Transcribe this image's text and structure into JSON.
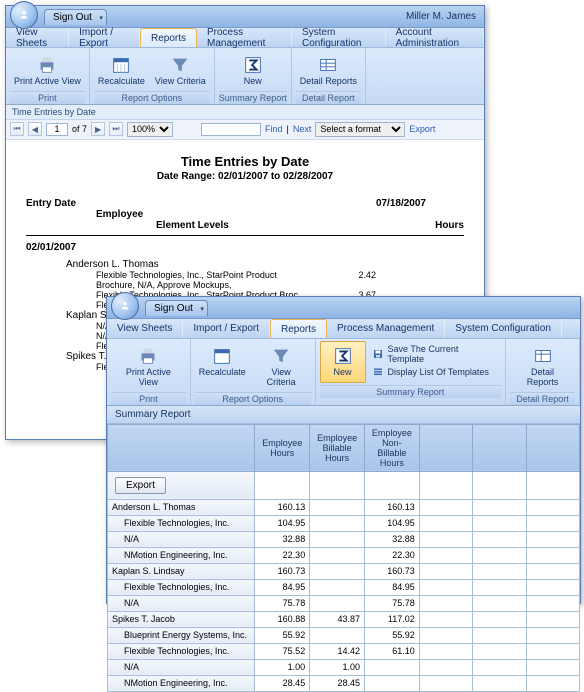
{
  "user": "Miller M. James",
  "signout": "Sign Out",
  "menus": [
    "View Sheets",
    "Import / Export",
    "Reports",
    "Process Management",
    "System Configuration",
    "Account Administration"
  ],
  "active_menu": 2,
  "ribbon": {
    "print": {
      "btn": "Print Active View",
      "group": "Print"
    },
    "reportopts": {
      "recalc": "Recalculate",
      "criteria": "View Criteria",
      "group": "Report Options"
    },
    "summary": {
      "new": "New",
      "group": "Summary Report"
    },
    "detail": {
      "btn": "Detail Reports",
      "group": "Detail Report"
    },
    "save_template": "Save The Current Template",
    "display_list": "Display List Of Templates"
  },
  "w1": {
    "crumb": "Time Entries by Date",
    "page_of": "of 7",
    "page": "1",
    "zoom": "100%",
    "find": "Find",
    "next": "Next",
    "format_placeholder": "Select a format",
    "export": "Export",
    "title": "Time Entries by Date",
    "range": "Date Range: 02/01/2007 to 02/28/2007",
    "entry_date_lbl": "Entry Date",
    "employee_lbl": "Employee",
    "elements_lbl": "Element Levels",
    "hours_lbl": "Hours",
    "asof": "07/18/2007",
    "group_date": "02/01/2007",
    "employees": [
      {
        "name": "Anderson L. Thomas",
        "tasks": [
          {
            "t": "Flexible Technologies, Inc., StarPoint Product Brochure, N/A, Approve Mockups,",
            "h": "2.42"
          },
          {
            "t": "Flexible Technologies, Inc., StarPoint Product Broc",
            "h": "3.67"
          },
          {
            "t": "Flexi\nCom",
            "h": ""
          }
        ]
      },
      {
        "name": "Kaplan S. Lindsay",
        "tasks": [
          {
            "t": "N/A,\nDesi",
            "h": ""
          },
          {
            "t": "N/A",
            "h": ""
          },
          {
            "t": "Flexi",
            "h": ""
          }
        ]
      },
      {
        "name": "Spikes T. Jacob",
        "tasks": [
          {
            "t": "Flexi",
            "h": ""
          }
        ]
      }
    ]
  },
  "w2": {
    "subtitle": "Summary Report",
    "export": "Export",
    "cols": [
      "",
      "Employee Hours",
      "Employee Billable Hours",
      "Employee Non-Billable Hours",
      "",
      "",
      ""
    ],
    "rows": [
      {
        "n": "Anderson L. Thomas",
        "v": [
          "160.13",
          "",
          "160.13"
        ],
        "i": 0
      },
      {
        "n": "Flexible Technologies, Inc.",
        "v": [
          "104.95",
          "",
          "104.95"
        ],
        "i": 1
      },
      {
        "n": "N/A",
        "v": [
          "32.88",
          "",
          "32.88"
        ],
        "i": 1
      },
      {
        "n": "NMotion Engineering, Inc.",
        "v": [
          "22.30",
          "",
          "22.30"
        ],
        "i": 1
      },
      {
        "n": "Kaplan S. Lindsay",
        "v": [
          "160.73",
          "",
          "160.73"
        ],
        "i": 0
      },
      {
        "n": "Flexible Technologies, Inc.",
        "v": [
          "84.95",
          "",
          "84.95"
        ],
        "i": 1
      },
      {
        "n": "N/A",
        "v": [
          "75.78",
          "",
          "75.78"
        ],
        "i": 1
      },
      {
        "n": "Spikes T. Jacob",
        "v": [
          "160.88",
          "43.87",
          "117.02"
        ],
        "i": 0
      },
      {
        "n": "Blueprint Energy Systems, Inc.",
        "v": [
          "55.92",
          "",
          "55.92"
        ],
        "i": 1
      },
      {
        "n": "Flexible Technologies, Inc.",
        "v": [
          "75.52",
          "14.42",
          "61.10"
        ],
        "i": 1
      },
      {
        "n": "N/A",
        "v": [
          "1.00",
          "1.00",
          ""
        ],
        "i": 1
      },
      {
        "n": "NMotion Engineering, Inc.",
        "v": [
          "28.45",
          "28.45",
          ""
        ],
        "i": 1
      }
    ]
  },
  "colors": {
    "accent": "#a9c5ea",
    "sel": "#ffd77a"
  }
}
